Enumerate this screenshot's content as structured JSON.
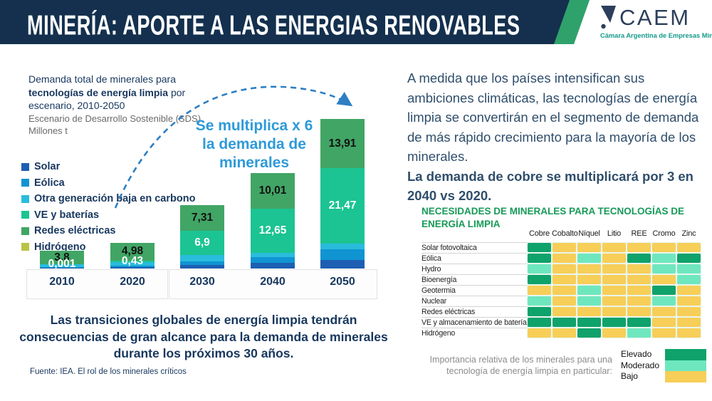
{
  "header": {
    "title": "MINERÍA: APORTE A LAS ENERGIAS RENOVABLES",
    "logo_name": "CAEM",
    "logo_subtitle": "Cámara Argentina de Empresas Mineras"
  },
  "chart_data": [
    {
      "type": "bar",
      "stacked": true,
      "heading": [
        "Demanda total de minerales para",
        "tecnologías de energía limpia",
        " por",
        "escenario, 2010-2050"
      ],
      "subheading": [
        "Escenario de Desarrollo Sostenible (SDS)",
        "Millones t"
      ],
      "categories": [
        "2010",
        "2020",
        "2030",
        "2040",
        "2050"
      ],
      "series": [
        {
          "name": "Solar",
          "color": "#1D5FB2",
          "values": [
            0.2,
            0.4,
            1.0,
            1.7,
            2.4
          ]
        },
        {
          "name": "Eólica",
          "color": "#1094D2",
          "values": [
            0.3,
            0.5,
            1.1,
            1.6,
            3.0
          ]
        },
        {
          "name": "Otra generación baja en carbono",
          "color": "#29BCDC",
          "values": [
            0.7,
            0.95,
            1.7,
            1.1,
            1.6
          ]
        },
        {
          "name": "VE y baterías",
          "color": "#1BC492",
          "values": [
            0.001,
            0.43,
            6.9,
            12.65,
            21.47
          ]
        },
        {
          "name": "Redes eléctricas",
          "color": "#41A565",
          "values": [
            3.8,
            4.98,
            7.31,
            10.01,
            13.91
          ]
        },
        {
          "name": "Hidrógeno",
          "color": "#B9C445",
          "values": [
            0,
            0,
            0,
            0,
            0
          ]
        }
      ],
      "bar_labels": {
        "black": [
          "3,8",
          "4,98",
          "7,31",
          "10,01",
          "13,91"
        ],
        "white": [
          "0,001",
          "0,43",
          "6,9",
          "12,65",
          "21,47"
        ]
      },
      "annotation_lines": [
        "Se multiplica x 6",
        "la demanda de",
        "minerales"
      ],
      "ylim": [
        0,
        45
      ],
      "unit": "Millones t"
    },
    {
      "type": "heatmap",
      "title": "NECESIDADES DE MINERALES PARA TECNOLOGÍAS DE ENERGÍA LIMPIA",
      "columns": [
        "Cobre",
        "Cobalto",
        "Níquel",
        "Litio",
        "REE",
        "Cromo",
        "Zinc"
      ],
      "rows": [
        {
          "label": "Solar fotovoltaica",
          "cells": [
            "E",
            "B",
            "B",
            "B",
            "B",
            "B",
            "B"
          ]
        },
        {
          "label": "Eólica",
          "cells": [
            "E",
            "B",
            "M",
            "B",
            "E",
            "M",
            "E"
          ]
        },
        {
          "label": "Hydro",
          "cells": [
            "M",
            "B",
            "B",
            "B",
            "B",
            "M",
            "M"
          ]
        },
        {
          "label": "Bioenergía",
          "cells": [
            "E",
            "B",
            "B",
            "B",
            "B",
            "B",
            "M"
          ]
        },
        {
          "label": "Geotermia",
          "cells": [
            "B",
            "B",
            "M",
            "B",
            "B",
            "E",
            "B"
          ]
        },
        {
          "label": "Nuclear",
          "cells": [
            "M",
            "B",
            "M",
            "B",
            "B",
            "M",
            "B"
          ]
        },
        {
          "label": "Redes eléctricas",
          "cells": [
            "E",
            "B",
            "B",
            "B",
            "B",
            "B",
            "B"
          ]
        },
        {
          "label": "VE y almacenamiento de baterías",
          "cells": [
            "E",
            "E",
            "E",
            "E",
            "E",
            "B",
            "B"
          ]
        },
        {
          "label": "Hidrógeno",
          "cells": [
            "B",
            "B",
            "E",
            "B",
            "M",
            "B",
            "B"
          ]
        }
      ],
      "levels": [
        {
          "code": "E",
          "label": "Elevado",
          "color": "#0FA26B"
        },
        {
          "code": "M",
          "label": "Moderado",
          "color": "#6FE7BE"
        },
        {
          "code": "B",
          "label": "Bajo",
          "color": "#F7CE58"
        }
      ],
      "legend_caption": "Importancia relativa de los minerales para una tecnología de energía limpia en particular:"
    }
  ],
  "insight": {
    "para1": "A medida que los países intensifican sus ambiciones climáticas, las tecnologías de energía limpia se convertirán en el segmento de demanda de más rápido crecimiento para la mayoría de los minerales.",
    "para2": "La demanda de cobre se multiplicará por 3 en 2040 vs 2020."
  },
  "key_message": "Las transiciones globales de energía limpia tendrán consecuencias de gran alcance para la demanda de minerales durante los próximos 30 años.",
  "source": "Fuente: IEA. El rol de los minerales críticos",
  "colors": {
    "header_navy": "#14304E",
    "header_green": "#2FA26B",
    "navy_text": "#17375E",
    "annotation_blue": "#2E9AD8",
    "table_title_green": "#169A58",
    "caem_teal": "#149A8B"
  }
}
